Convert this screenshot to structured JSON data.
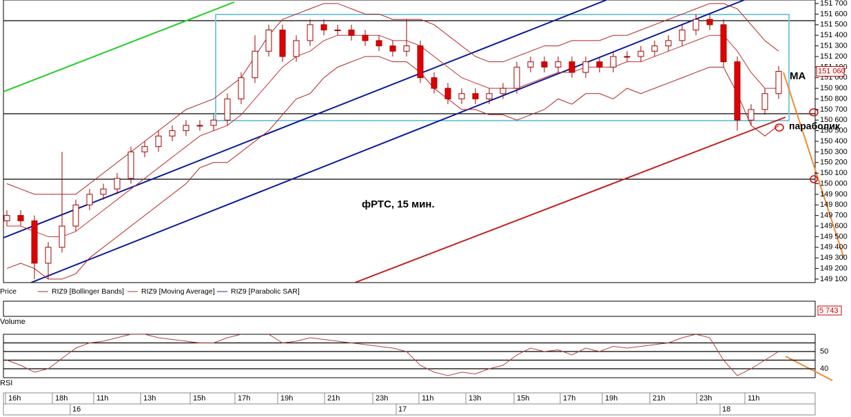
{
  "chart_data": {
    "type": "candlestick",
    "annotation": "фРТС,  15 мин.",
    "ma_label": "MA",
    "sar_label": "параболик",
    "legend": [
      "Price",
      "RIZ9 [Bollinger Bands]",
      "RIZ9 [Moving Average]",
      "RIZ9 [Parabolic SAR]"
    ],
    "last_price": {
      "value": 151060,
      "label": "151 060"
    },
    "up_color": "#ffffff",
    "down_color": "#e00000",
    "edge_color": "#a00000",
    "ylim": [
      149067,
      151733
    ],
    "yticks": [
      {
        "value": 151700,
        "label": "151 700"
      },
      {
        "value": 151600,
        "label": "151 600"
      },
      {
        "value": 151500,
        "label": "151 500"
      },
      {
        "value": 151400,
        "label": "151 400"
      },
      {
        "value": 151300,
        "label": "151 300"
      },
      {
        "value": 151200,
        "label": "151 200"
      },
      {
        "value": 151100,
        "label": "151 100"
      },
      {
        "value": 151000,
        "label": "151 000"
      },
      {
        "value": 150900,
        "label": "150 900"
      },
      {
        "value": 150800,
        "label": "150 800"
      },
      {
        "value": 150700,
        "label": "150 700"
      },
      {
        "value": 150600,
        "label": "150 600"
      },
      {
        "value": 150500,
        "label": "150 500"
      },
      {
        "value": 150400,
        "label": "150 400"
      },
      {
        "value": 150300,
        "label": "150 300"
      },
      {
        "value": 150200,
        "label": "150 200"
      },
      {
        "value": 150100,
        "label": "150 100"
      },
      {
        "value": 150000,
        "label": "150 000"
      },
      {
        "value": 149900,
        "label": "149 900"
      },
      {
        "value": 149800,
        "label": "149 800"
      },
      {
        "value": 149700,
        "label": "149 700"
      },
      {
        "value": 149600,
        "label": "149 600"
      },
      {
        "value": 149500,
        "label": "149 500"
      },
      {
        "value": 149400,
        "label": "149 400"
      },
      {
        "value": 149300,
        "label": "149 300"
      },
      {
        "value": 149200,
        "label": "149 200"
      },
      {
        "value": 149100,
        "label": "149 100"
      }
    ],
    "open": [
      149650,
      149700,
      149650,
      149250,
      149400,
      149600,
      149800,
      149900,
      149950,
      150050,
      150300,
      150350,
      150450,
      150500,
      150550,
      150550,
      150600,
      150800,
      151000,
      151250,
      151450,
      151200,
      151350,
      151500,
      151450,
      151450,
      151400,
      151350,
      151300,
      151250,
      151300,
      151000,
      150900,
      150800,
      150850,
      150800,
      150850,
      150900,
      151100,
      151150,
      151100,
      151150,
      151050,
      151150,
      151100,
      151200,
      151200,
      151250,
      151300,
      151350,
      151450,
      151550,
      151500,
      151150,
      150600,
      150700,
      150850
    ],
    "high": [
      149750,
      149750,
      149700,
      149450,
      150300,
      149850,
      149950,
      150000,
      150100,
      150350,
      150400,
      150500,
      150550,
      150600,
      150600,
      150650,
      150850,
      151050,
      151400,
      151500,
      151500,
      151400,
      151550,
      151550,
      151500,
      151500,
      151450,
      151400,
      151350,
      151550,
      151350,
      151050,
      150950,
      150900,
      150900,
      150900,
      150950,
      151150,
      151200,
      151200,
      151200,
      151200,
      151200,
      151200,
      151250,
      151250,
      151300,
      151350,
      151400,
      151500,
      151600,
      151600,
      151550,
      151200,
      150750,
      150900,
      151110
    ],
    "low": [
      149600,
      149600,
      149100,
      149100,
      149350,
      149550,
      149750,
      149850,
      149900,
      150000,
      150250,
      150300,
      150400,
      150450,
      150500,
      150500,
      150550,
      150750,
      150950,
      151200,
      151150,
      151150,
      151300,
      151400,
      151400,
      151350,
      151300,
      151250,
      151200,
      151200,
      150950,
      150850,
      150750,
      150750,
      150750,
      150750,
      150800,
      150850,
      151050,
      151050,
      151050,
      151000,
      151000,
      151050,
      151050,
      151150,
      151150,
      151200,
      151250,
      151300,
      151400,
      151450,
      151100,
      150500,
      150550,
      150650,
      150800
    ],
    "close": [
      149700,
      149650,
      149250,
      149400,
      149600,
      149800,
      149900,
      149950,
      150050,
      150300,
      150350,
      150450,
      150500,
      150550,
      150550,
      150600,
      150800,
      151000,
      151250,
      151450,
      151200,
      151350,
      151500,
      151450,
      151450,
      151400,
      151350,
      151300,
      151250,
      151300,
      151000,
      150900,
      150800,
      150850,
      150800,
      150850,
      150900,
      151100,
      151150,
      151100,
      151150,
      151050,
      151150,
      151100,
      151200,
      151200,
      151250,
      151300,
      151350,
      151450,
      151550,
      151500,
      151150,
      150600,
      150700,
      150850,
      151060
    ],
    "series": [
      {
        "name": "Moving Average",
        "color": "#c03030",
        "values": [
          149600,
          149600,
          149550,
          149500,
          149500,
          149550,
          149650,
          149750,
          149850,
          149950,
          150050,
          150150,
          150250,
          150350,
          150450,
          150500,
          150550,
          150650,
          150800,
          150950,
          151100,
          151200,
          151250,
          151350,
          151400,
          151400,
          151400,
          151400,
          151350,
          151350,
          151300,
          151200,
          151100,
          151000,
          150950,
          150900,
          150900,
          150900,
          150950,
          151000,
          151050,
          151050,
          151100,
          151100,
          151100,
          151150,
          151150,
          151200,
          151250,
          151300,
          151350,
          151400,
          151400,
          151250,
          151050,
          150900,
          150900
        ]
      },
      {
        "name": "Bollinger Upper",
        "color": "#b02020",
        "values": [
          150000,
          149950,
          149900,
          149900,
          149900,
          149900,
          150000,
          150100,
          150200,
          150300,
          150400,
          150500,
          150600,
          150700,
          150750,
          150800,
          150900,
          151000,
          151200,
          151400,
          151550,
          151600,
          151650,
          151700,
          151700,
          151650,
          151600,
          151600,
          151550,
          151550,
          151550,
          151500,
          151400,
          151300,
          151200,
          151150,
          151150,
          151200,
          151250,
          151300,
          151300,
          151350,
          151350,
          151350,
          151400,
          151400,
          151450,
          151500,
          151550,
          151600,
          151650,
          151700,
          151700,
          151650,
          151500,
          151350,
          151250
        ]
      },
      {
        "name": "Bollinger Lower",
        "color": "#b02020",
        "values": [
          149200,
          149250,
          149200,
          149100,
          149100,
          149150,
          149300,
          149400,
          149500,
          149600,
          149700,
          149800,
          149900,
          150000,
          150150,
          150200,
          150200,
          150300,
          150400,
          150500,
          150650,
          150800,
          150850,
          151000,
          151100,
          151150,
          151200,
          151200,
          151150,
          151150,
          151050,
          150900,
          150800,
          150700,
          150700,
          150650,
          150650,
          150600,
          150650,
          150700,
          150800,
          150750,
          150850,
          150850,
          150800,
          150900,
          150850,
          150900,
          150950,
          151000,
          151050,
          151100,
          151100,
          150850,
          150550,
          150450,
          150550
        ]
      }
    ],
    "volume": {
      "label": "Volume",
      "last": {
        "value": 5743,
        "label": "5 743"
      }
    },
    "rsi": {
      "label": "RSI",
      "color": "#b04040",
      "ylim": [
        35,
        60
      ],
      "yticks": [
        40,
        50
      ],
      "grid_lines": [
        40,
        45,
        50,
        55
      ],
      "values": [
        45,
        42,
        38,
        40,
        46,
        52,
        55,
        56,
        58,
        60,
        60,
        58,
        57,
        56,
        55,
        55,
        58,
        60,
        62,
        60,
        55,
        56,
        58,
        57,
        56,
        55,
        54,
        53,
        52,
        50,
        42,
        38,
        36,
        38,
        37,
        40,
        42,
        48,
        52,
        50,
        51,
        48,
        52,
        50,
        53,
        52,
        53,
        54,
        55,
        58,
        60,
        58,
        45,
        36,
        40,
        45,
        50
      ]
    },
    "time_labels": [
      "16h",
      "18h",
      "11h",
      "13h",
      "15h",
      "17h",
      "19h",
      "21h",
      "23h",
      "11h",
      "13h",
      "15h",
      "17h",
      "19h",
      "21h",
      "23h",
      "11h"
    ],
    "date_labels": [
      "16",
      "17",
      "18"
    ]
  }
}
